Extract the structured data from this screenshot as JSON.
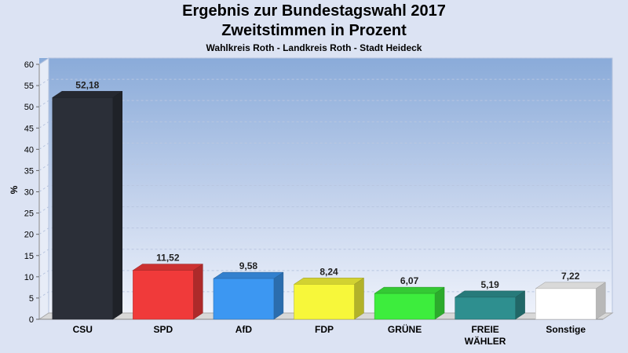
{
  "header": {
    "title_line1": "Ergebnis zur Bundestagswahl 2017",
    "title_line2": "Zweitstimmen in Prozent",
    "subtitle": "Wahlkreis Roth - Landkreis Roth - Stadt Heideck"
  },
  "chart_data": {
    "type": "bar",
    "title": "Ergebnis zur Bundestagswahl 2017 Zweitstimmen in Prozent",
    "subtitle": "Wahlkreis Roth - Landkreis Roth - Stadt Heideck",
    "xlabel": "",
    "ylabel": "%",
    "ylim": [
      0,
      60
    ],
    "yticks": [
      0,
      5,
      10,
      15,
      20,
      25,
      30,
      35,
      40,
      45,
      50,
      55,
      60
    ],
    "grid": true,
    "categories": [
      "CSU",
      "SPD",
      "AfD",
      "FDP",
      "GRÜNE",
      "FREIE WÄHLER",
      "Sonstige"
    ],
    "category_lines": [
      [
        "CSU"
      ],
      [
        "SPD"
      ],
      [
        "AfD"
      ],
      [
        "FDP"
      ],
      [
        "GRÜNE"
      ],
      [
        "FREIE",
        "WÄHLER"
      ],
      [
        "Sonstige"
      ]
    ],
    "values": [
      52.18,
      11.52,
      9.58,
      8.24,
      6.07,
      5.19,
      7.22
    ],
    "value_labels": [
      "52,18",
      "11,52",
      "9,58",
      "8,24",
      "6,07",
      "5,19",
      "7,22"
    ],
    "colors": [
      "#2b2f38",
      "#f03a3a",
      "#3c97f2",
      "#f7f73a",
      "#3ded3d",
      "#2e8f8f",
      "#ffffff"
    ]
  }
}
